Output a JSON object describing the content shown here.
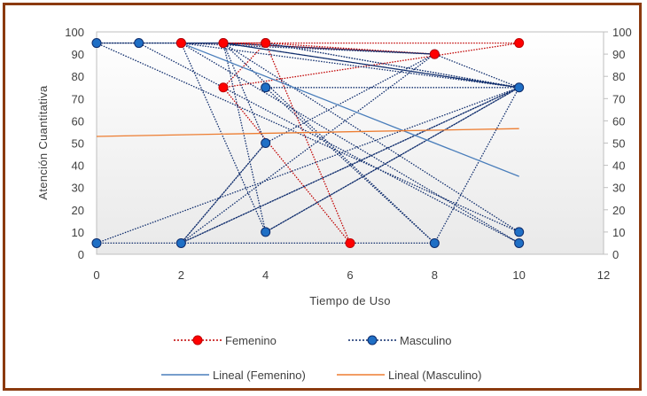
{
  "chart_data": {
    "type": "line",
    "title": "",
    "xlabel": "Tiempo de Uso",
    "ylabel": "Atención Cuantitativa",
    "xlim": [
      0,
      12
    ],
    "ylim": [
      0,
      100
    ],
    "x_ticks": [
      0,
      2,
      4,
      6,
      8,
      10,
      12
    ],
    "y_ticks": [
      0,
      10,
      20,
      30,
      40,
      50,
      60,
      70,
      80,
      90,
      100
    ],
    "secondary_y_axis": true,
    "grid": false,
    "legend_position": "bottom",
    "series": [
      {
        "name": "Femenino",
        "style": "dotted-markers",
        "color": "#c00000",
        "marker_color": "#ff0000",
        "x": [
          3,
          4,
          2,
          4,
          6,
          3,
          10,
          2,
          3,
          8,
          4
        ],
        "y": [
          75,
          95,
          95,
          95,
          5,
          75,
          95,
          95,
          95,
          90,
          95
        ]
      },
      {
        "name": "Masculino",
        "style": "dotted-markers",
        "color": "#0d2b6b",
        "marker_color": "#1f6fc5",
        "x": [
          0,
          2,
          10,
          1,
          3,
          8,
          2,
          4,
          10,
          0,
          8,
          10,
          3,
          4,
          2,
          10,
          4,
          8,
          3,
          10,
          0,
          2,
          3,
          10,
          4,
          10,
          2,
          8,
          3,
          4,
          10,
          2,
          4,
          8,
          10,
          2,
          3
        ],
        "y": [
          95,
          95,
          5,
          95,
          95,
          90,
          95,
          10,
          75,
          5,
          5,
          75,
          95,
          50,
          5,
          75,
          75,
          5,
          95,
          10,
          95,
          95,
          95,
          75,
          95,
          75,
          5,
          90,
          95,
          10,
          75,
          5,
          50,
          90,
          75,
          95,
          95
        ]
      }
    ],
    "trendlines": [
      {
        "name": "Lineal (Femenino)",
        "color": "#4a7ebb",
        "x": [
          2,
          10
        ],
        "y": [
          95,
          35
        ]
      },
      {
        "name": "Lineal (Masculino)",
        "color": "#ed7d31",
        "x": [
          0,
          10
        ],
        "y": [
          53,
          56.5
        ]
      }
    ]
  }
}
